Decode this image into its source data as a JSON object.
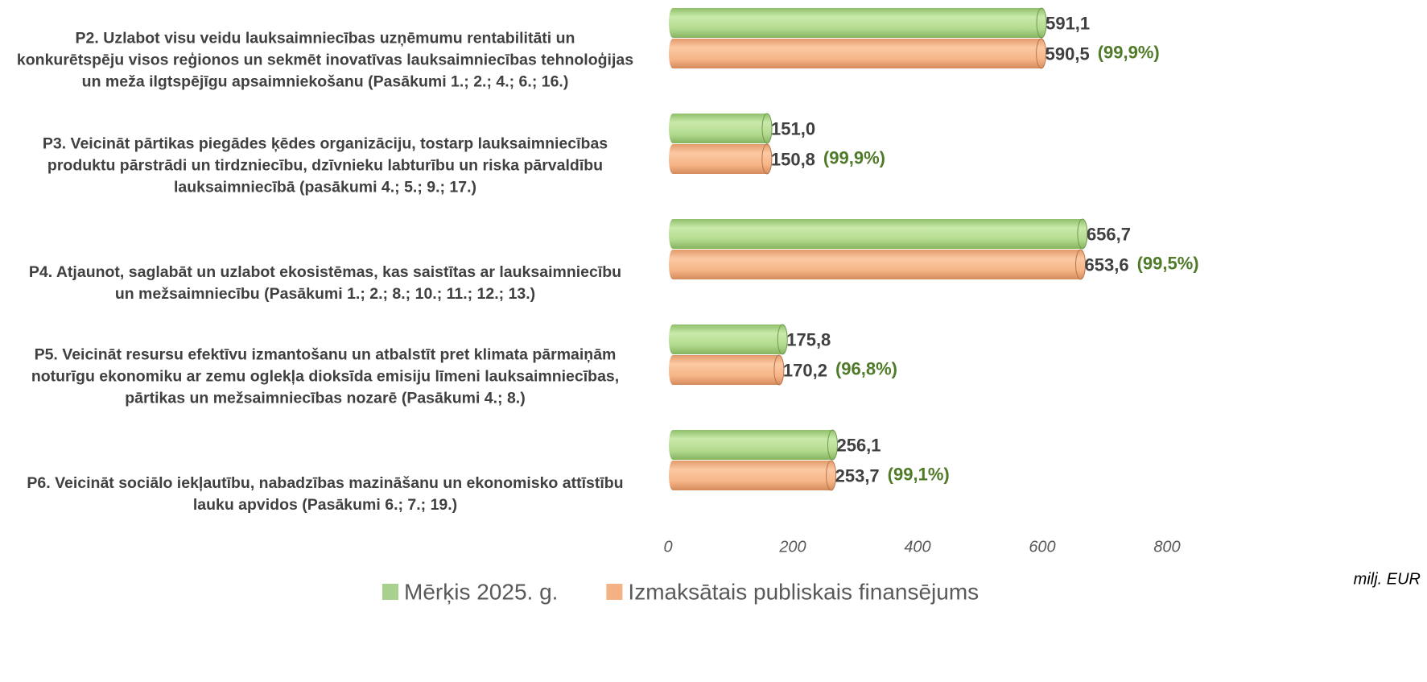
{
  "chart_data": {
    "type": "bar",
    "orientation": "horizontal",
    "categories": [
      "P2. Uzlabot visu veidu lauksaimniecības uzņēmumu rentabilitāti un\nkonkurētspēju visos reģionos un sekmēt inovatīvas lauksaimniecības tehnoloģijas\nun meža ilgtspējīgu apsaimniekošanu (Pasākumi 1.; 2.; 4.; 6.; 16.)",
      "P3. Veicināt pārtikas piegādes ķēdes organizāciju, tostarp lauksaimniecības\nproduktu pārstrādi un tirdzniecību, dzīvnieku labturību un riska pārvaldību\nlauksaimniecībā (pasākumi 4.; 5.; 9.; 17.)",
      "P4. Atjaunot, saglabāt un uzlabot ekosistēmas, kas saistītas ar lauksaimniecību\nun mežsaimniecību (Pasākumi 1.; 2.; 8.; 10.; 11.; 12.; 13.)",
      "P5. Veicināt resursu efektīvu izmantošanu un atbalstīt pret klimata pārmaiņām\nnoturīgu ekonomiku ar zemu oglekļa dioksīda emisiju līmeni lauksaimniecības,\npārtikas un mežsaimniecības nozarē (Pasākumi 4.; 8.)",
      "P6. Veicināt sociālo iekļautību, nabadzības mazināšanu un ekonomisko attīstību\nlauku apvidos (Pasākumi 6.; 7.; 19.)"
    ],
    "series": [
      {
        "name": "Mērķis 2025. g.",
        "color": "#a9d18e",
        "values": [
          591.1,
          151.0,
          656.7,
          175.8,
          256.1
        ],
        "value_labels": [
          "591,1",
          "151,0",
          "656,7",
          "175,8",
          "256,1"
        ]
      },
      {
        "name": "Izmaksātais publiskais finansējums",
        "color": "#f4b183",
        "values": [
          590.5,
          150.8,
          653.6,
          170.2,
          253.7
        ],
        "value_labels": [
          "590,5",
          "150,8",
          "653,6",
          "170,2",
          "253,7"
        ],
        "annotations": [
          "(99,9%)",
          "(99,9%)",
          "(99,5%)",
          "(96,8%)",
          "(99,1%)"
        ]
      }
    ],
    "xlim": [
      0,
      800
    ],
    "xticks": [
      0,
      200,
      400,
      600,
      800
    ],
    "x_axis_unit": "milj. EUR",
    "grid": false,
    "legend": "bottom"
  }
}
